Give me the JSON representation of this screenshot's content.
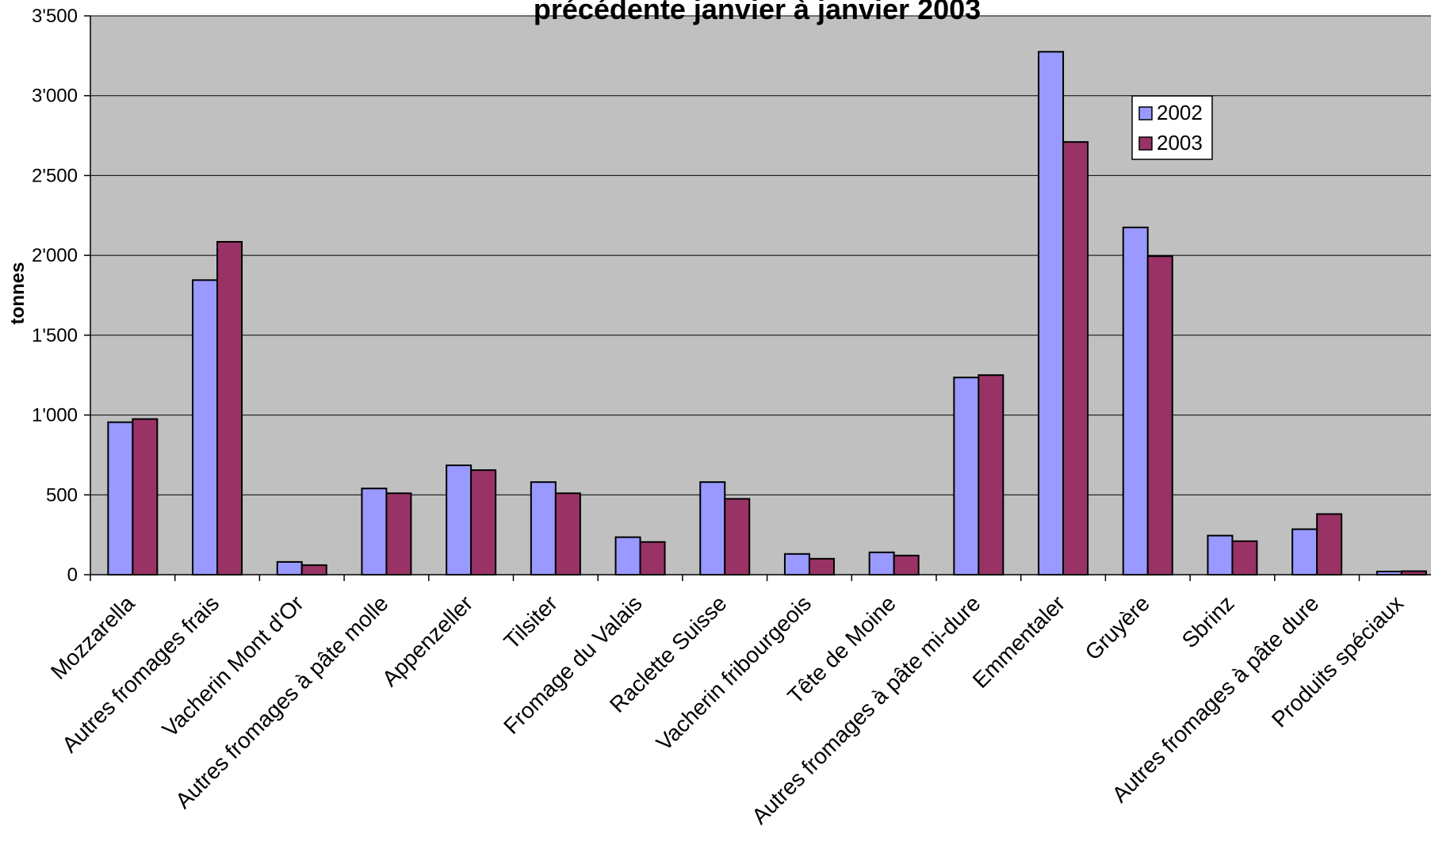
{
  "chart_data": {
    "type": "bar",
    "title": "précédente janvier à janvier 2003",
    "ylabel": "tonnes",
    "xlabel": "",
    "ylim": [
      0,
      3500
    ],
    "yticks": [
      0,
      500,
      1000,
      1500,
      2000,
      2500,
      3000,
      3500
    ],
    "ytick_labels": [
      "0",
      "500",
      "1'000",
      "1'500",
      "2'000",
      "2'500",
      "3'000",
      "3'500"
    ],
    "grid": true,
    "plot_background": "#c0c0c0",
    "legend_position": "top-right",
    "categories": [
      "Mozzarella",
      "Autres fromages frais",
      "Vacherin Mont d'Or",
      "Autres fromages à pâte molle",
      "Appenzeller",
      "Tilsiter",
      "Fromage du Valais",
      "Raclette Suisse",
      "Vacherin fribourgeois",
      "Tête de Moine",
      "Autres fromages à pâte mi-dure",
      "Emmentaler",
      "Gruyère",
      "Sbrinz",
      "Autres fromages à pâte dure",
      "Produits spéciaux"
    ],
    "series": [
      {
        "name": "2002",
        "color": "#9999ff",
        "values": [
          955,
          1845,
          80,
          540,
          685,
          580,
          235,
          580,
          130,
          140,
          1235,
          3275,
          2175,
          245,
          285,
          20
        ]
      },
      {
        "name": "2003",
        "color": "#993366",
        "values": [
          975,
          2085,
          60,
          510,
          655,
          510,
          205,
          475,
          100,
          120,
          1250,
          2710,
          1995,
          210,
          380,
          22
        ]
      }
    ]
  }
}
